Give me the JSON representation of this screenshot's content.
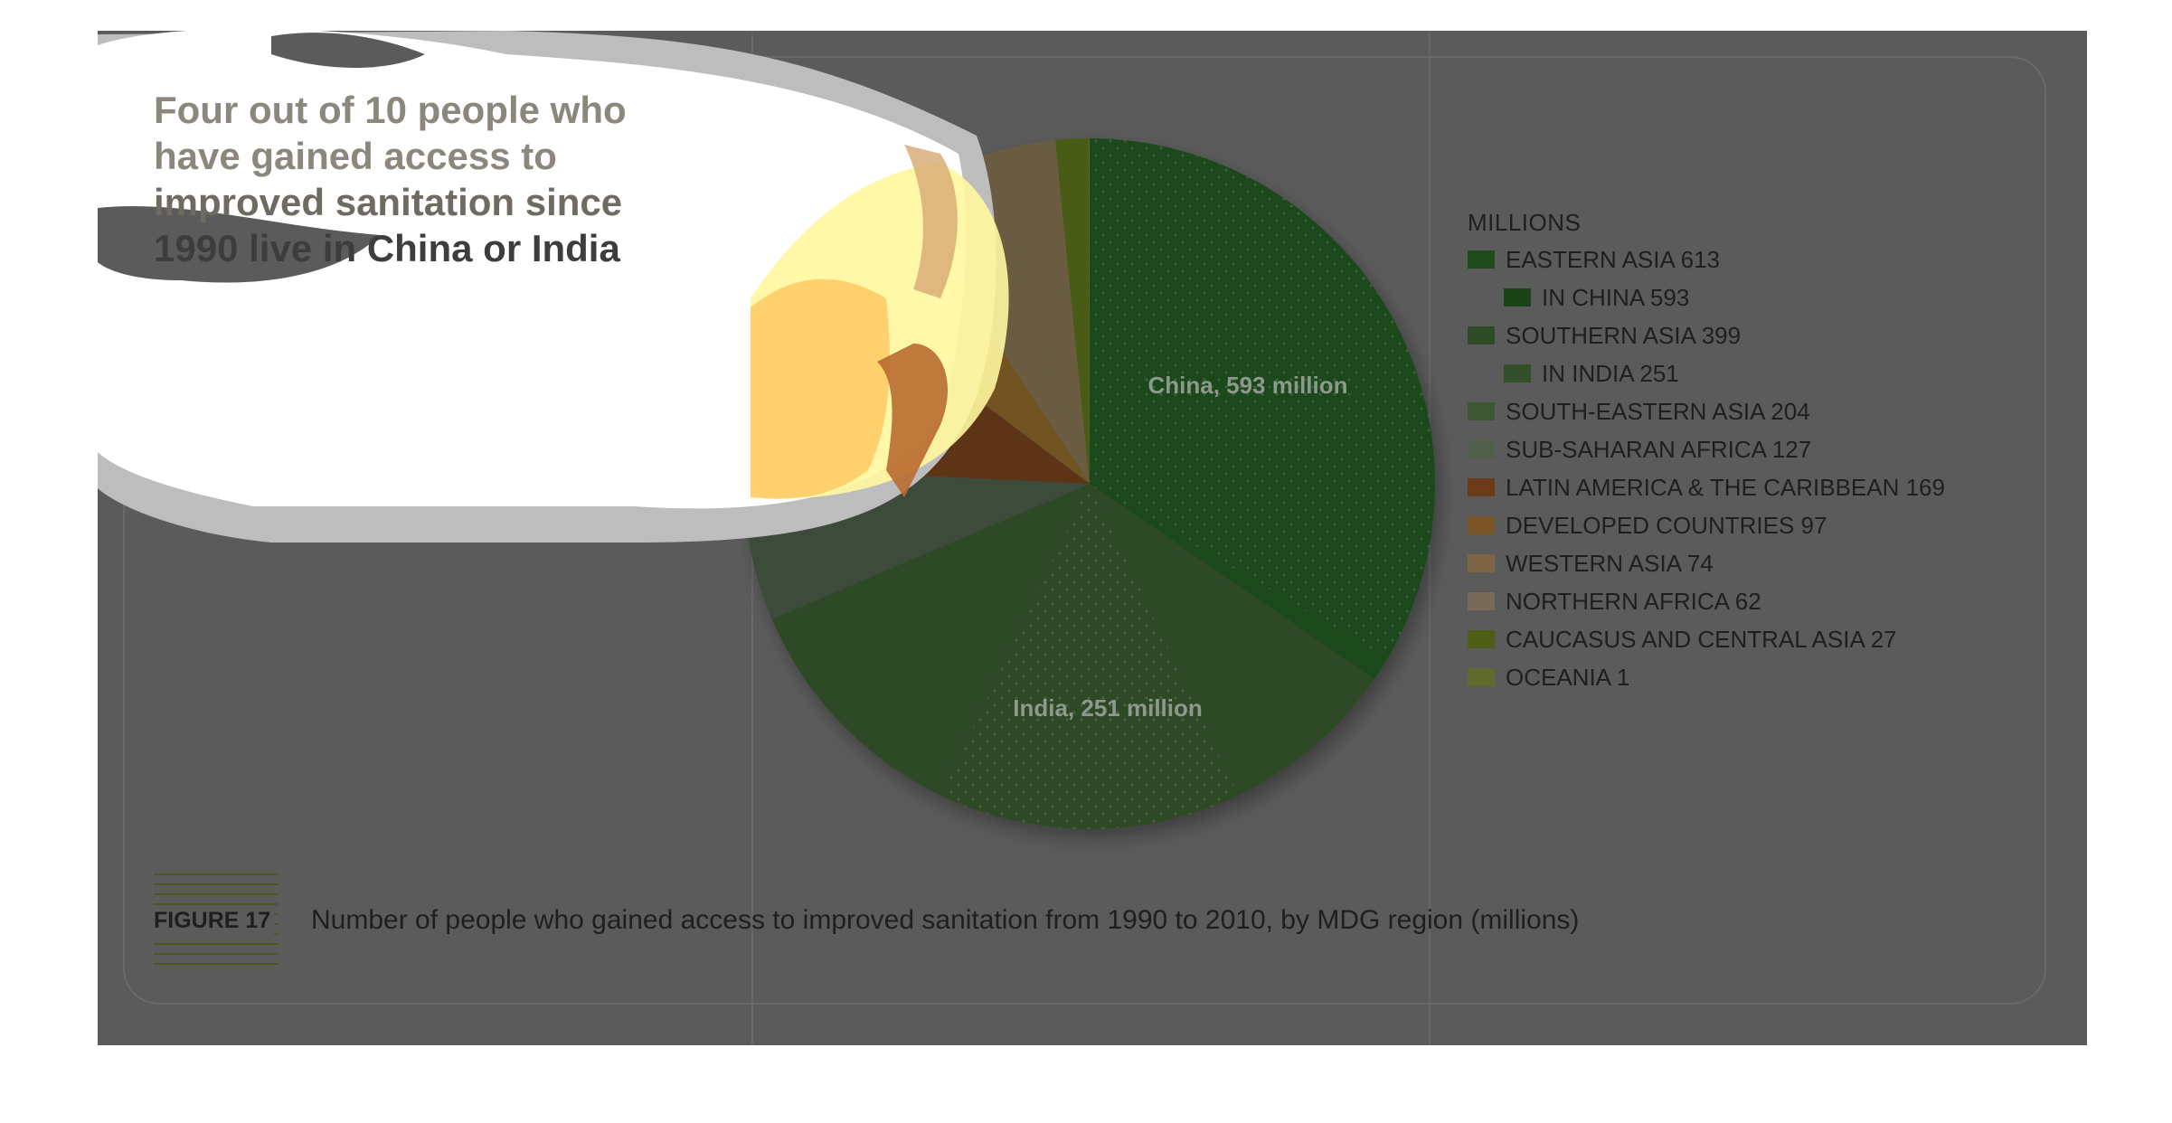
{
  "headline": [
    "Four out of 10 people who",
    "have gained access to",
    "improved sanitation since",
    "1990 live in China or India"
  ],
  "colors": {
    "eastern_asia": "#1e4a1c",
    "southern_asia": "#2f4a27",
    "south_eastern_asia": "#2f4a27",
    "sub_saharan_africa": "#3e4c3a",
    "latin_america": "#5d3514",
    "developed": "#725322",
    "western_asia": "#6a5b3f",
    "northern_africa": "#6a5b3f",
    "caucasus": "#4a5b14",
    "oceania": "#5e6628",
    "panel": "#5b5b5b",
    "glare": "#ffffff"
  },
  "chart_data": {
    "type": "pie",
    "unit": "MILLIONS",
    "slices": [
      {
        "label": "EASTERN ASIA",
        "value": 613,
        "color": "#1e4a1c",
        "pattern": "dots",
        "sub": {
          "label": "IN CHINA",
          "value": 593
        }
      },
      {
        "label": "SOUTHERN ASIA",
        "value": 399,
        "color": "#2f4a27",
        "pattern": "dots",
        "sub": {
          "label": "IN INDIA",
          "value": 251
        }
      },
      {
        "label": "SOUTH-EASTERN ASIA",
        "value": 204,
        "color": "#2f4a27",
        "pattern": "none"
      },
      {
        "label": "SUB-SAHARAN AFRICA",
        "value": 127,
        "color": "#3e4c3a",
        "pattern": "none"
      },
      {
        "label": "LATIN AMERICA & THE CARIBBEAN",
        "value": 169,
        "color": "#5d3514",
        "pattern": "none"
      },
      {
        "label": "DEVELOPED COUNTRIES",
        "value": 97,
        "color": "#725322",
        "pattern": "none"
      },
      {
        "label": "WESTERN ASIA",
        "value": 74,
        "color": "#6a5b3f",
        "pattern": "none"
      },
      {
        "label": "NORTHERN AFRICA",
        "value": 62,
        "color": "#6a5b3f",
        "pattern": "none"
      },
      {
        "label": "CAUCASUS AND CENTRAL ASIA",
        "value": 27,
        "color": "#4a5b14",
        "pattern": "none"
      },
      {
        "label": "OCEANIA",
        "value": 1,
        "color": "#5e6628",
        "pattern": "none"
      }
    ],
    "annotations": [
      "China, 593 million",
      "India, 251 million"
    ],
    "legend": {
      "title": "MILLIONS",
      "placement": "right",
      "items": [
        {
          "text": "EASTERN ASIA 613",
          "color": "#1e4a1c",
          "indent": false
        },
        {
          "text": "IN CHINA 593",
          "color": "#1a4418",
          "indent": true
        },
        {
          "text": "SOUTHERN ASIA 399",
          "color": "#2f4a27",
          "indent": false
        },
        {
          "text": "IN INDIA 251",
          "color": "#33502b",
          "indent": true
        },
        {
          "text": "SOUTH-EASTERN ASIA 204",
          "color": "#3d5634",
          "indent": false
        },
        {
          "text": "SUB-SAHARAN AFRICA 127",
          "color": "#4f5f49",
          "indent": false
        },
        {
          "text": "LATIN AMERICA & THE CARIBBEAN 169",
          "color": "#6b3a16",
          "indent": false
        },
        {
          "text": "DEVELOPED COUNTRIES 97",
          "color": "#7a5526",
          "indent": false
        },
        {
          "text": "WESTERN ASIA 74",
          "color": "#7d6444",
          "indent": false
        },
        {
          "text": "NORTHERN AFRICA 62",
          "color": "#776a58",
          "indent": false
        },
        {
          "text": "CAUCASUS AND CENTRAL ASIA 27",
          "color": "#4e5e14",
          "indent": false
        },
        {
          "text": "OCEANIA 1",
          "color": "#606a2a",
          "indent": false
        }
      ]
    }
  },
  "figure": {
    "label": "FIGURE 17",
    "caption": "Number of people who gained access to improved sanitation from 1990 to 2010, by MDG region (millions)"
  }
}
